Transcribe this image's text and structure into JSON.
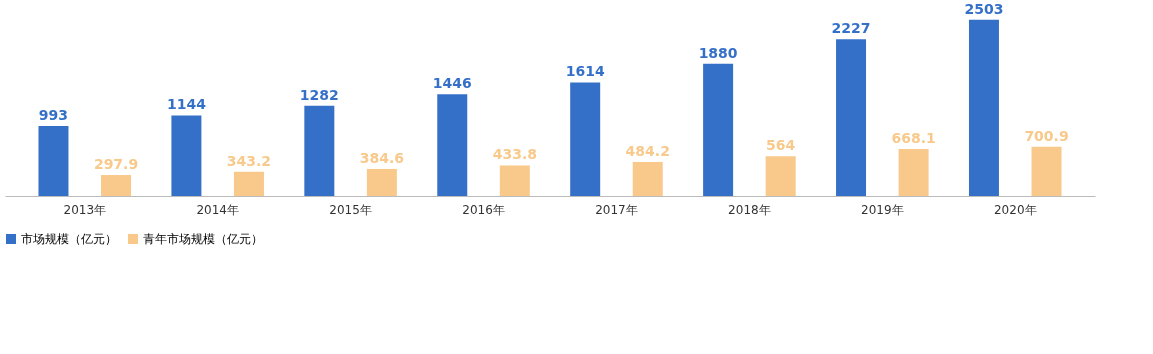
{
  "chart_data": {
    "type": "bar",
    "categories": [
      "2013年",
      "2014年",
      "2015年",
      "2016年",
      "2017年",
      "2018年",
      "2019年",
      "2020年"
    ],
    "series": [
      {
        "name": "市场规模（亿元）",
        "color": "#3570c8",
        "values": [
          993,
          1144,
          1282,
          1446,
          1614,
          1880,
          2227,
          2503
        ]
      },
      {
        "name": "青年市场规模（亿元）",
        "color": "#f8c98a",
        "values": [
          297.9,
          343.2,
          384.6,
          433.8,
          484.2,
          564,
          668.1,
          700.9
        ]
      }
    ],
    "data_labels": true,
    "legend": "bottom",
    "grid": false
  }
}
